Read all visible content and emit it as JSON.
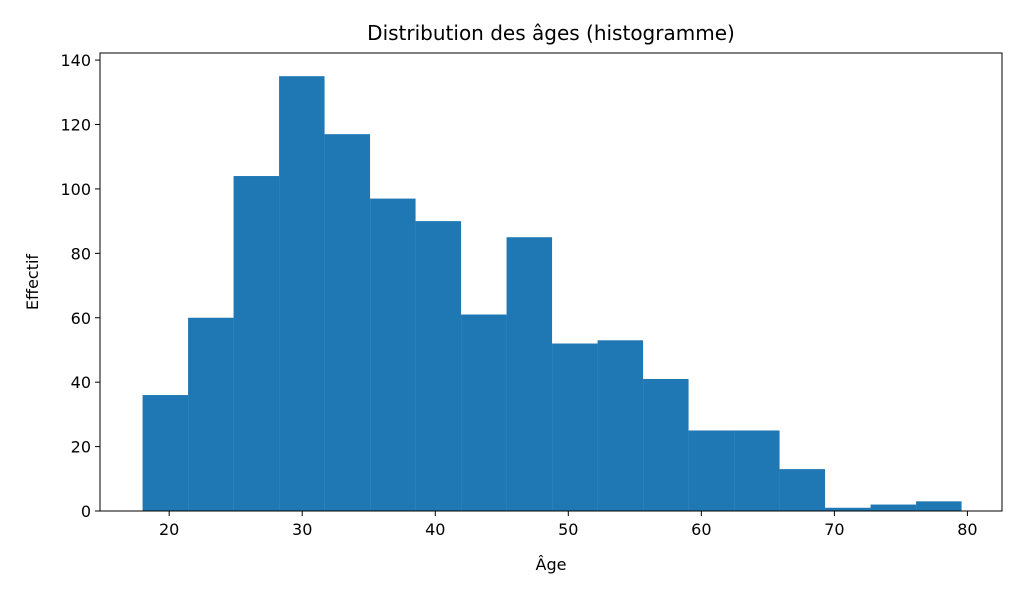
{
  "chart_data": {
    "type": "histogram",
    "title": "Distribution des âges (histogramme)",
    "x_label": "Âge",
    "y_label": "Effectif",
    "bins": [
      18,
      21.42,
      24.84,
      28.26,
      31.68,
      35.1,
      38.52,
      41.94,
      45.36,
      48.78,
      52.2,
      55.62,
      59.04,
      62.46,
      65.88,
      69.3,
      72.72,
      76.14,
      79.56
    ],
    "values": [
      36,
      60,
      104,
      135,
      117,
      97,
      90,
      61,
      85,
      52,
      53,
      41,
      25,
      25,
      13,
      1,
      2,
      3
    ],
    "color": "#1f77b4",
    "xlim": [
      14.8,
      82.6
    ],
    "xticks": [
      20,
      30,
      40,
      50,
      60,
      70,
      80
    ],
    "ylim": [
      0,
      142.2
    ],
    "yticks": [
      0,
      20,
      40,
      60,
      80,
      100,
      120,
      140
    ],
    "grid": false
  }
}
